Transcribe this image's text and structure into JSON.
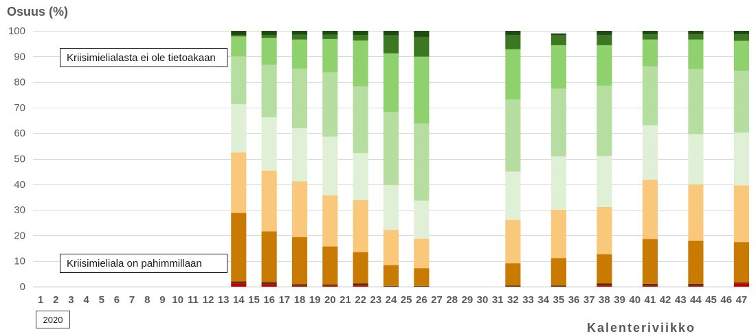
{
  "chart_data": {
    "type": "bar",
    "stacked": true,
    "ylabel": "Osuus (%)",
    "xlabel": "Kalenteriviikko",
    "x_group_label": "2020",
    "ylim": [
      0,
      100
    ],
    "yticks": [
      0,
      10,
      20,
      30,
      40,
      50,
      60,
      70,
      80,
      90,
      100
    ],
    "grid": true,
    "legend": "none",
    "annotations": [
      {
        "text": "Kriisimielialasta ei ole tietoakaan"
      },
      {
        "text": "Kriisimieliala on pahimmillaan"
      }
    ],
    "categories": [
      "1",
      "2",
      "3",
      "4",
      "5",
      "6",
      "7",
      "8",
      "9",
      "10",
      "11",
      "12",
      "13",
      "14",
      "15",
      "16",
      "17",
      "18",
      "19",
      "20",
      "21",
      "22",
      "23",
      "24",
      "25",
      "26",
      "27",
      "28",
      "29",
      "30",
      "31",
      "32",
      "33",
      "34",
      "35",
      "36",
      "37",
      "38",
      "39",
      "40",
      "41",
      "42",
      "43",
      "44",
      "45",
      "46",
      "47"
    ],
    "series": [
      {
        "color": "#c00000",
        "values": [
          null,
          null,
          null,
          null,
          null,
          null,
          null,
          null,
          null,
          null,
          null,
          null,
          null,
          1.3,
          null,
          1.0,
          null,
          0.3,
          null,
          0.3,
          null,
          0.5,
          null,
          0,
          null,
          0,
          null,
          null,
          null,
          null,
          null,
          0,
          null,
          null,
          0,
          null,
          null,
          0.5,
          null,
          null,
          0.3,
          null,
          null,
          0.3,
          null,
          null,
          1.3
        ]
      },
      {
        "color": "#5b2c0f",
        "values": [
          null,
          null,
          null,
          null,
          null,
          null,
          null,
          null,
          null,
          null,
          null,
          null,
          null,
          0.7,
          null,
          0.8,
          null,
          0.7,
          null,
          0.5,
          null,
          0.8,
          null,
          0.3,
          null,
          0.3,
          null,
          null,
          null,
          null,
          null,
          0.4,
          null,
          null,
          0.4,
          null,
          null,
          0.8,
          null,
          null,
          0.8,
          null,
          null,
          0.8,
          null,
          null,
          0.3
        ]
      },
      {
        "color": "#c97a00",
        "values": [
          null,
          null,
          null,
          null,
          null,
          null,
          null,
          null,
          null,
          null,
          null,
          null,
          null,
          26.8,
          null,
          19.8,
          null,
          18.4,
          null,
          14.9,
          null,
          12.2,
          null,
          8.1,
          null,
          6.9,
          null,
          null,
          null,
          null,
          null,
          8.7,
          null,
          null,
          10.8,
          null,
          null,
          11.4,
          null,
          null,
          17.5,
          null,
          null,
          16.9,
          null,
          null,
          15.8
        ]
      },
      {
        "color": "#f9c87a",
        "values": [
          null,
          null,
          null,
          null,
          null,
          null,
          null,
          null,
          null,
          null,
          null,
          null,
          null,
          23.7,
          null,
          23.7,
          null,
          21.8,
          null,
          20.0,
          null,
          20.3,
          null,
          13.8,
          null,
          11.6,
          null,
          null,
          null,
          null,
          null,
          17.0,
          null,
          null,
          18.8,
          null,
          null,
          18.4,
          null,
          null,
          23.2,
          null,
          null,
          22.0,
          null,
          null,
          22.2
        ]
      },
      {
        "color": "#e0f0d6",
        "values": [
          null,
          null,
          null,
          null,
          null,
          null,
          null,
          null,
          null,
          null,
          null,
          null,
          null,
          18.8,
          null,
          20.9,
          null,
          20.7,
          null,
          22.9,
          null,
          18.4,
          null,
          17.5,
          null,
          14.8,
          null,
          null,
          null,
          null,
          null,
          18.9,
          null,
          null,
          20.9,
          null,
          null,
          20.0,
          null,
          null,
          21.3,
          null,
          null,
          19.6,
          null,
          null,
          20.6
        ]
      },
      {
        "color": "#b6dea0",
        "values": [
          null,
          null,
          null,
          null,
          null,
          null,
          null,
          null,
          null,
          null,
          null,
          null,
          null,
          18.7,
          null,
          20.5,
          null,
          23.3,
          null,
          25.2,
          null,
          26.1,
          null,
          28.6,
          null,
          30.2,
          null,
          null,
          null,
          null,
          null,
          28.2,
          null,
          null,
          26.5,
          null,
          null,
          27.5,
          null,
          null,
          23.0,
          null,
          null,
          25.5,
          null,
          null,
          24.2
        ]
      },
      {
        "color": "#8fd16d",
        "values": [
          null,
          null,
          null,
          null,
          null,
          null,
          null,
          null,
          null,
          null,
          null,
          null,
          null,
          7.8,
          null,
          10.6,
          null,
          11.4,
          null,
          13.0,
          null,
          17.9,
          null,
          22.9,
          null,
          26.1,
          null,
          null,
          null,
          null,
          null,
          19.6,
          null,
          null,
          17.0,
          null,
          null,
          15.8,
          null,
          null,
          10.5,
          null,
          null,
          11.5,
          null,
          null,
          11.7
        ]
      },
      {
        "color": "#3c7722",
        "values": [
          null,
          null,
          null,
          null,
          null,
          null,
          null,
          null,
          null,
          null,
          null,
          null,
          null,
          0.6,
          null,
          1.1,
          null,
          1.9,
          null,
          1.7,
          null,
          2.2,
          null,
          7.0,
          null,
          7.7,
          null,
          null,
          null,
          null,
          null,
          5.6,
          null,
          null,
          3.8,
          null,
          null,
          4.0,
          null,
          null,
          2.0,
          null,
          null,
          2.0,
          null,
          null,
          2.5
        ]
      },
      {
        "color": "#1f4a12",
        "values": [
          null,
          null,
          null,
          null,
          null,
          null,
          null,
          null,
          null,
          null,
          null,
          null,
          null,
          1.6,
          null,
          1.6,
          null,
          1.5,
          null,
          1.5,
          null,
          1.6,
          null,
          1.8,
          null,
          2.4,
          null,
          null,
          null,
          null,
          null,
          1.6,
          null,
          null,
          0.8,
          null,
          null,
          1.6,
          null,
          null,
          1.4,
          null,
          null,
          1.4,
          null,
          null,
          1.4
        ]
      }
    ]
  }
}
